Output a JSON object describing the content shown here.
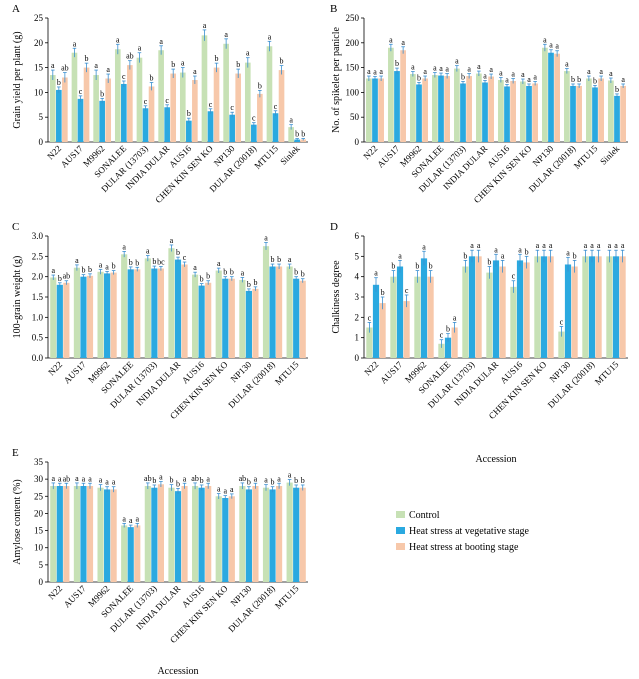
{
  "colors": {
    "control": "#c7e1b5",
    "vegetative": "#2aa9e0",
    "booting": "#f7c8aa",
    "axis": "#000000",
    "error": "#3a8fd0"
  },
  "legend": {
    "control": "Control",
    "vegetative": "Heat stress at vegetative stage",
    "booting": "Heat stress at booting stage"
  },
  "chart_data": [
    {
      "panel": "A",
      "type": "bar",
      "ylabel": "Grain yield per plant (g)",
      "xlabel": "",
      "ylim": [
        0,
        25
      ],
      "yticks": [
        0,
        5,
        10,
        15,
        20,
        25
      ],
      "categories": [
        "N22",
        "AUS17",
        "M9962",
        "SONALEE",
        "DULAR (13703)",
        "INDIA DULAR",
        "AUS16",
        "CHEN KIN SEN KO",
        "NP130",
        "DULAR (20018)",
        "MTU15",
        "Sinlek"
      ],
      "series": [
        {
          "key": "control",
          "values": [
            13.5,
            18.0,
            13.5,
            18.7,
            17.0,
            18.5,
            14.0,
            21.5,
            19.8,
            16.0,
            19.3,
            3.0
          ],
          "errors": [
            1.0,
            0.9,
            1.0,
            1.0,
            1.0,
            0.9,
            1.0,
            1.1,
            1.0,
            1.0,
            1.0,
            0.5
          ],
          "letters": [
            "a",
            "a",
            "a",
            "a",
            "a",
            "a",
            "a",
            "a",
            "a",
            "a",
            "a",
            "a"
          ]
        },
        {
          "key": "vegetative",
          "values": [
            10.5,
            8.7,
            8.3,
            11.7,
            6.8,
            7.0,
            4.3,
            6.2,
            5.5,
            3.5,
            5.8,
            0.5
          ],
          "errors": [
            0.6,
            0.6,
            0.5,
            0.6,
            0.5,
            0.5,
            0.5,
            0.5,
            0.5,
            0.4,
            0.5,
            0.2
          ],
          "letters": [
            "b",
            "c",
            "b",
            "c",
            "c",
            "c",
            "b",
            "c",
            "c",
            "c",
            "c",
            "b"
          ]
        },
        {
          "key": "booting",
          "values": [
            13.0,
            15.0,
            12.8,
            15.5,
            11.2,
            13.8,
            12.5,
            15.0,
            13.8,
            9.7,
            14.5,
            0.5
          ],
          "errors": [
            1.0,
            0.9,
            0.9,
            0.9,
            0.8,
            0.9,
            0.8,
            0.9,
            0.9,
            0.7,
            0.9,
            0.2
          ],
          "letters": [
            "ab",
            "b",
            "a",
            "ab",
            "b",
            "b",
            "a",
            "b",
            "b",
            "b",
            "b",
            "b"
          ]
        }
      ]
    },
    {
      "panel": "B",
      "type": "bar",
      "ylabel": "No. of spikelet per panicle",
      "xlabel": "",
      "ylim": [
        0,
        250
      ],
      "yticks": [
        0,
        50,
        100,
        150,
        200,
        250
      ],
      "categories": [
        "N22",
        "AUS17",
        "M9962",
        "SONALEE",
        "DULAR (13703)",
        "INDIA DULAR",
        "AUS16",
        "CHEN KIN SEN KO",
        "NP130",
        "DULAR (20018)",
        "MTU15",
        "Sinlek"
      ],
      "series": [
        {
          "key": "control",
          "values": [
            128,
            190,
            137,
            135,
            148,
            138,
            125,
            122,
            190,
            143,
            128,
            124
          ],
          "errors": [
            5,
            7,
            5,
            5,
            6,
            5,
            5,
            5,
            7,
            5,
            5,
            5
          ],
          "letters": [
            "a",
            "a",
            "a",
            "a",
            "a",
            "a",
            "a",
            "a",
            "a",
            "a",
            "a",
            "a"
          ]
        },
        {
          "key": "vegetative",
          "values": [
            128,
            143,
            116,
            134,
            118,
            120,
            112,
            113,
            180,
            113,
            110,
            93
          ],
          "errors": [
            4,
            6,
            4,
            5,
            4,
            4,
            4,
            4,
            6,
            4,
            4,
            4
          ],
          "letters": [
            "a",
            "b",
            "b",
            "a",
            "b",
            "a",
            "a",
            "a",
            "a",
            "b",
            "b",
            "b"
          ]
        },
        {
          "key": "booting",
          "values": [
            128,
            185,
            128,
            133,
            133,
            132,
            123,
            118,
            178,
            113,
            128,
            113
          ],
          "errors": [
            5,
            7,
            5,
            5,
            5,
            5,
            5,
            4,
            6,
            4,
            5,
            4
          ],
          "letters": [
            "a",
            "a",
            "a",
            "a",
            "a",
            "a",
            "a",
            "a",
            "a",
            "b",
            "a",
            "a"
          ]
        }
      ]
    },
    {
      "panel": "C",
      "type": "bar",
      "ylabel": "100-grain weight (g)",
      "xlabel": "",
      "ylim": [
        0,
        3.0
      ],
      "yticks": [
        0,
        0.5,
        1.0,
        1.5,
        2.0,
        2.5,
        3.0
      ],
      "ytick_labels": [
        "0.0",
        "0.5",
        "1.0",
        "1.5",
        "2.0",
        "2.5",
        "3.0"
      ],
      "categories": [
        "N22",
        "AUS17",
        "M9962",
        "SONALEE",
        "DULAR (13703)",
        "INDIA DULAR",
        "AUS16",
        "CHEN KIN SEN KO",
        "NP130",
        "DULAR (20018)",
        "MTU15"
      ],
      "series": [
        {
          "key": "control",
          "values": [
            1.98,
            2.22,
            2.12,
            2.55,
            2.45,
            2.7,
            2.05,
            2.15,
            1.92,
            2.75,
            2.25
          ],
          "errors": [
            0.06,
            0.07,
            0.06,
            0.07,
            0.07,
            0.08,
            0.06,
            0.06,
            0.06,
            0.09,
            0.06
          ],
          "letters": [
            "a",
            "a",
            "a",
            "a",
            "a",
            "a",
            "a",
            "a",
            "a",
            "a",
            "a"
          ]
        },
        {
          "key": "vegetative",
          "values": [
            1.8,
            2.0,
            2.08,
            2.18,
            2.2,
            2.42,
            1.78,
            1.95,
            1.65,
            2.25,
            1.95
          ],
          "errors": [
            0.05,
            0.05,
            0.05,
            0.06,
            0.06,
            0.06,
            0.05,
            0.05,
            0.05,
            0.06,
            0.05
          ],
          "letters": [
            "b",
            "b",
            "a",
            "b",
            "b",
            "b",
            "b",
            "b",
            "b",
            "b",
            "b"
          ]
        },
        {
          "key": "booting",
          "values": [
            1.85,
            2.02,
            2.1,
            2.18,
            2.2,
            2.3,
            1.85,
            1.95,
            1.7,
            2.25,
            1.9
          ],
          "errors": [
            0.05,
            0.05,
            0.05,
            0.05,
            0.05,
            0.06,
            0.05,
            0.05,
            0.05,
            0.06,
            0.05
          ],
          "letters": [
            "ab",
            "b",
            "b",
            "b",
            "bc",
            "c",
            "b",
            "b",
            "b",
            "b",
            "b"
          ]
        }
      ]
    },
    {
      "panel": "D",
      "type": "bar",
      "ylabel": "Chalkiness degree",
      "xlabel": "Accession",
      "ylim": [
        0,
        6
      ],
      "yticks": [
        0,
        1,
        2,
        3,
        4,
        5,
        6
      ],
      "categories": [
        "N22",
        "AUS17",
        "M9962",
        "SONALEE",
        "DULAR (13703)",
        "INDIA DULAR",
        "AUS16",
        "CHEN KIN SEN KO",
        "NP130",
        "DULAR (20018)",
        "MTU15"
      ],
      "series": [
        {
          "key": "control",
          "values": [
            1.5,
            4.0,
            4.0,
            0.7,
            4.5,
            4.2,
            3.5,
            5.0,
            1.3,
            5.0,
            5.0
          ],
          "errors": [
            0.25,
            0.3,
            0.3,
            0.2,
            0.3,
            0.3,
            0.3,
            0.3,
            0.25,
            0.3,
            0.3
          ],
          "letters": [
            "c",
            "b",
            "b",
            "c",
            "b",
            "b",
            "c",
            "a",
            "c",
            "a",
            "a"
          ]
        },
        {
          "key": "vegetative",
          "values": [
            3.6,
            4.5,
            4.9,
            1.0,
            5.0,
            4.8,
            4.8,
            5.0,
            4.6,
            5.0,
            5.0
          ],
          "errors": [
            0.35,
            0.3,
            0.35,
            0.2,
            0.3,
            0.3,
            0.3,
            0.3,
            0.35,
            0.3,
            0.3
          ],
          "letters": [
            "a",
            "a",
            "a",
            "b",
            "a",
            "a",
            "a",
            "a",
            "a",
            "a",
            "a"
          ]
        },
        {
          "key": "booting",
          "values": [
            2.7,
            2.8,
            4.0,
            1.5,
            5.0,
            4.5,
            4.7,
            5.0,
            4.5,
            5.0,
            5.0
          ],
          "errors": [
            0.3,
            0.3,
            0.3,
            0.25,
            0.3,
            0.3,
            0.3,
            0.3,
            0.3,
            0.3,
            0.3
          ],
          "letters": [
            "b",
            "c",
            "b",
            "a",
            "a",
            "a",
            "b",
            "a",
            "b",
            "a",
            "a"
          ]
        }
      ]
    },
    {
      "panel": "E",
      "type": "bar",
      "ylabel": "Amylose content (%)",
      "xlabel": "Accession",
      "ylim": [
        0,
        35
      ],
      "yticks": [
        0,
        5,
        10,
        15,
        20,
        25,
        30,
        35
      ],
      "categories": [
        "N22",
        "AUS17",
        "M9962",
        "SONALEE",
        "DULAR (13703)",
        "INDIA DULAR",
        "AUS16",
        "CHEN KIN SEN KO",
        "NP130",
        "DULAR (20018)",
        "MTU15"
      ],
      "series": [
        {
          "key": "control",
          "values": [
            28.0,
            28.0,
            27.5,
            16.5,
            28.0,
            27.5,
            28.0,
            25.0,
            28.0,
            27.5,
            29.0
          ],
          "errors": [
            0.9,
            0.9,
            0.9,
            0.6,
            0.9,
            0.9,
            0.9,
            0.8,
            0.9,
            0.9,
            0.9
          ],
          "letters": [
            "a",
            "a",
            "a",
            "a",
            "ab",
            "b",
            "ab",
            "a",
            "ab",
            "a",
            "a"
          ]
        },
        {
          "key": "vegetative",
          "values": [
            28.0,
            28.0,
            27.0,
            16.0,
            27.5,
            26.5,
            27.5,
            24.5,
            27.0,
            27.0,
            27.5
          ],
          "errors": [
            0.8,
            0.8,
            0.8,
            0.6,
            0.8,
            0.8,
            0.8,
            0.7,
            0.8,
            0.8,
            0.8
          ],
          "letters": [
            "a",
            "a",
            "a",
            "a",
            "b",
            "b",
            "b",
            "a",
            "b",
            "b",
            "b"
          ]
        },
        {
          "key": "booting",
          "values": [
            28.0,
            28.0,
            27.0,
            16.5,
            28.5,
            28.0,
            28.0,
            25.0,
            28.0,
            28.0,
            27.5
          ],
          "errors": [
            0.8,
            0.8,
            0.8,
            0.6,
            0.8,
            0.8,
            0.8,
            0.7,
            0.8,
            0.8,
            0.8
          ],
          "letters": [
            "ab",
            "a",
            "a",
            "a",
            "a",
            "a",
            "a",
            "a",
            "a",
            "a",
            "b"
          ]
        }
      ]
    }
  ]
}
